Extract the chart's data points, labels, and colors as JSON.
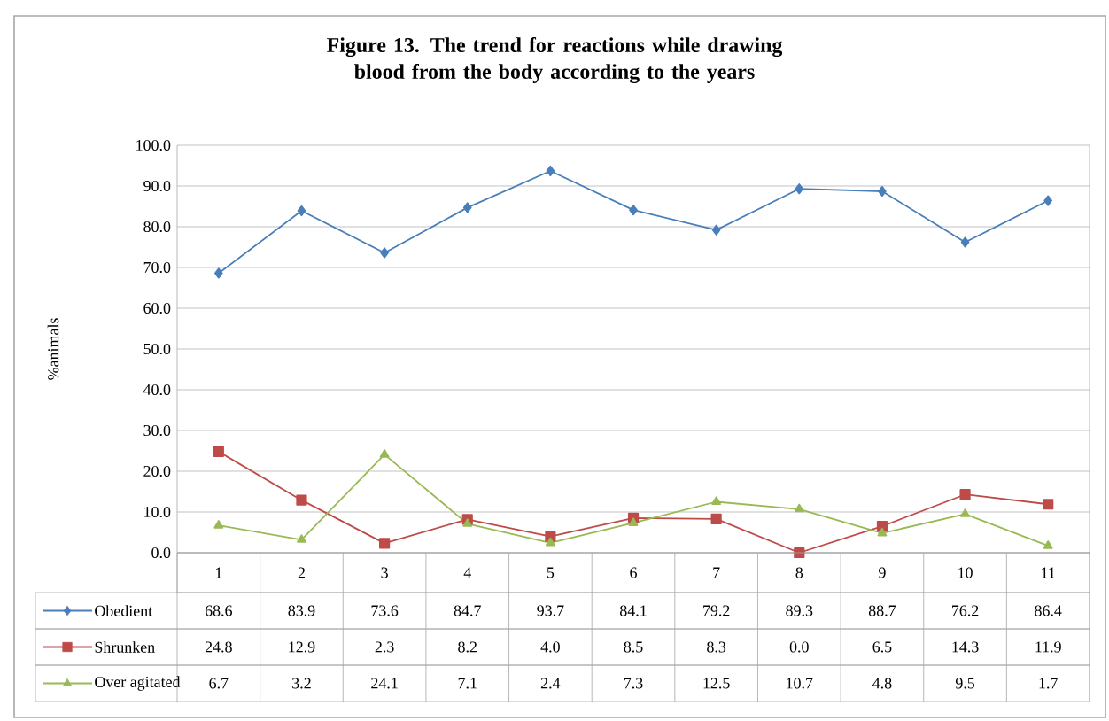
{
  "chart_data": {
    "type": "line",
    "title": "Figure 13. The trend for reactions while drawing blood from the body according to the years",
    "ylabel": "%animals",
    "categories": [
      "1",
      "2",
      "3",
      "4",
      "5",
      "6",
      "7",
      "8",
      "9",
      "10",
      "11"
    ],
    "series": [
      {
        "name": "Obedient",
        "color": "#4a7ebb",
        "marker": "diamond",
        "values": [
          68.6,
          83.9,
          73.6,
          84.7,
          93.7,
          84.1,
          79.2,
          89.3,
          88.7,
          76.2,
          86.4
        ],
        "value_labels": [
          "68.6",
          "83.9",
          "73.6",
          "84.7",
          "93.7",
          "84.1",
          "79.2",
          "89.3",
          "88.7",
          "76.2",
          "86.4"
        ]
      },
      {
        "name": "Shrunken",
        "color": "#be4b48",
        "marker": "square",
        "values": [
          24.8,
          12.9,
          2.3,
          8.2,
          4.0,
          8.5,
          8.3,
          0.0,
          6.5,
          14.3,
          11.9
        ],
        "value_labels": [
          "24.8",
          "12.9",
          "2.3",
          "8.2",
          "4.0",
          "8.5",
          "8.3",
          "0.0",
          "6.5",
          "14.3",
          "11.9"
        ]
      },
      {
        "name": "Over agitated",
        "color": "#98b954",
        "marker": "triangle",
        "values": [
          6.7,
          3.2,
          24.1,
          7.1,
          2.4,
          7.3,
          12.5,
          10.7,
          4.8,
          9.5,
          1.7
        ],
        "value_labels": [
          "6.7",
          "3.2",
          "24.1",
          "7.1",
          "2.4",
          "7.3",
          "12.5",
          "10.7",
          "4.8",
          "9.5",
          "1.7"
        ]
      }
    ],
    "ylim": [
      0,
      100
    ],
    "yticks": [
      {
        "value": 0,
        "label": "0.0"
      },
      {
        "value": 10,
        "label": "10.0"
      },
      {
        "value": 20,
        "label": "20.0"
      },
      {
        "value": 30,
        "label": "30.0"
      },
      {
        "value": 40,
        "label": "40.0"
      },
      {
        "value": 50,
        "label": "50.0"
      },
      {
        "value": 60,
        "label": "60.0"
      },
      {
        "value": 70,
        "label": "70.0"
      },
      {
        "value": 80,
        "label": "80.0"
      },
      {
        "value": 90,
        "label": "90.0"
      },
      {
        "value": 100,
        "label": "100.0"
      }
    ],
    "grid": "y",
    "legend": "bottom"
  }
}
